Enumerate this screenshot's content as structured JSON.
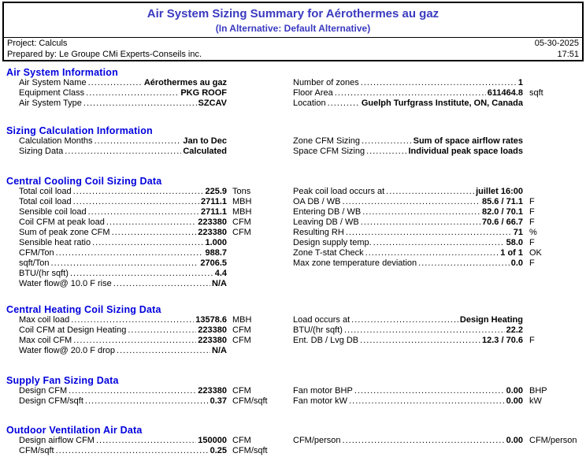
{
  "header": {
    "title": "Air System Sizing Summary for Aérothermes au gaz",
    "subtitle": "(In Alternative: Default Alternative)",
    "project": "Project: Calculs",
    "prepared_by": "Prepared by: Le Groupe CMi Experts-Conseils inc.",
    "date": "05-30-2025",
    "time": "17:51"
  },
  "colors": {
    "title_blue": "#3a3ac0",
    "heading_blue": "#0000dd",
    "text_black": "#000000"
  },
  "sections": [
    {
      "title": "Air System Information",
      "left": [
        {
          "label": "Air System Name",
          "value": "Aérothermes au gaz",
          "unit": ""
        },
        {
          "label": "Equipment Class",
          "value": "PKG ROOF",
          "unit": ""
        },
        {
          "label": "Air System Type",
          "value": "SZCAV",
          "unit": ""
        }
      ],
      "right": [
        {
          "label": "Number of zones",
          "value": "1",
          "unit": ""
        },
        {
          "label": "Floor Area",
          "value": "611464.8",
          "unit": "sqft"
        },
        {
          "label": "Location",
          "value": "Guelph Turfgrass Institute, ON, Canada",
          "unit": ""
        }
      ]
    },
    {
      "title": "Sizing Calculation Information",
      "left": [
        {
          "label": "Calculation Months",
          "value": "Jan to Dec",
          "unit": ""
        },
        {
          "label": "Sizing Data",
          "value": "Calculated",
          "unit": ""
        }
      ],
      "right": [
        {
          "label": "Zone CFM Sizing",
          "value": "Sum of space airflow rates",
          "unit": ""
        },
        {
          "label": "Space CFM Sizing",
          "value": "Individual peak space loads",
          "unit": ""
        }
      ]
    },
    {
      "title": "Central Cooling Coil Sizing Data",
      "left": [
        {
          "label": "Total coil load",
          "value": "225.9",
          "unit": "Tons"
        },
        {
          "label": "Total coil load",
          "value": "2711.1",
          "unit": "MBH"
        },
        {
          "label": "Sensible coil load",
          "value": "2711.1",
          "unit": "MBH"
        },
        {
          "label": "Coil CFM at peak load",
          "value": "223380",
          "unit": "CFM"
        },
        {
          "label": "Sum of peak zone CFM",
          "value": "223380",
          "unit": "CFM"
        },
        {
          "label": "Sensible heat ratio",
          "value": "1.000",
          "unit": ""
        },
        {
          "label": "CFM/Ton",
          "value": "988.7",
          "unit": ""
        },
        {
          "label": "sqft/Ton",
          "value": "2706.5",
          "unit": ""
        },
        {
          "label": "BTU/(hr sqft)",
          "value": "4.4",
          "unit": ""
        },
        {
          "label": "Water flow@ 10.0 F rise",
          "value": "N/A",
          "unit": ""
        }
      ],
      "right": [
        {
          "label": "Peak coil load occurs at",
          "value": "juillet 16:00",
          "unit": ""
        },
        {
          "label": "OA DB / WB",
          "value": "85.6 / 71.1",
          "unit": "F"
        },
        {
          "label": "Entering DB / WB",
          "value": "82.0 / 70.1",
          "unit": "F"
        },
        {
          "label": "Leaving DB / WB",
          "value": "70.6 / 66.7",
          "unit": "F"
        },
        {
          "label": "Resulting RH",
          "value": "71",
          "unit": "%"
        },
        {
          "label": "Design supply temp.",
          "value": "58.0",
          "unit": "F"
        },
        {
          "label": "Zone T-stat Check",
          "value": "1 of 1",
          "unit": "OK"
        },
        {
          "label": "Max zone temperature deviation",
          "value": "0.0",
          "unit": "F"
        }
      ]
    },
    {
      "title": "Central Heating Coil Sizing Data",
      "left": [
        {
          "label": "Max coil load",
          "value": "13578.6",
          "unit": "MBH"
        },
        {
          "label": "Coil CFM at Design Heating",
          "value": "223380",
          "unit": "CFM"
        },
        {
          "label": "Max coil CFM",
          "value": "223380",
          "unit": "CFM"
        },
        {
          "label": "Water flow@ 20.0 F drop",
          "value": "N/A",
          "unit": ""
        }
      ],
      "right": [
        {
          "label": "Load occurs at",
          "value": "Design Heating",
          "unit": ""
        },
        {
          "label": "BTU/(hr sqft)",
          "value": "22.2",
          "unit": ""
        },
        {
          "label": "Ent. DB / Lvg DB",
          "value": "12.3 / 70.6",
          "unit": "F"
        }
      ]
    },
    {
      "title": "Supply Fan Sizing Data",
      "left": [
        {
          "label": "Design CFM",
          "value": "223380",
          "unit": "CFM"
        },
        {
          "label": "Design CFM/sqft",
          "value": "0.37",
          "unit": "CFM/sqft"
        }
      ],
      "right": [
        {
          "label": "Fan motor BHP",
          "value": "0.00",
          "unit": "BHP"
        },
        {
          "label": "Fan motor kW",
          "value": "0.00",
          "unit": "kW"
        }
      ]
    },
    {
      "title": "Outdoor Ventilation Air Data",
      "left": [
        {
          "label": "Design airflow CFM",
          "value": "150000",
          "unit": "CFM"
        },
        {
          "label": "CFM/sqft",
          "value": "0.25",
          "unit": "CFM/sqft"
        }
      ],
      "right": [
        {
          "label": "CFM/person",
          "value": "0.00",
          "unit": "CFM/person"
        }
      ]
    }
  ]
}
